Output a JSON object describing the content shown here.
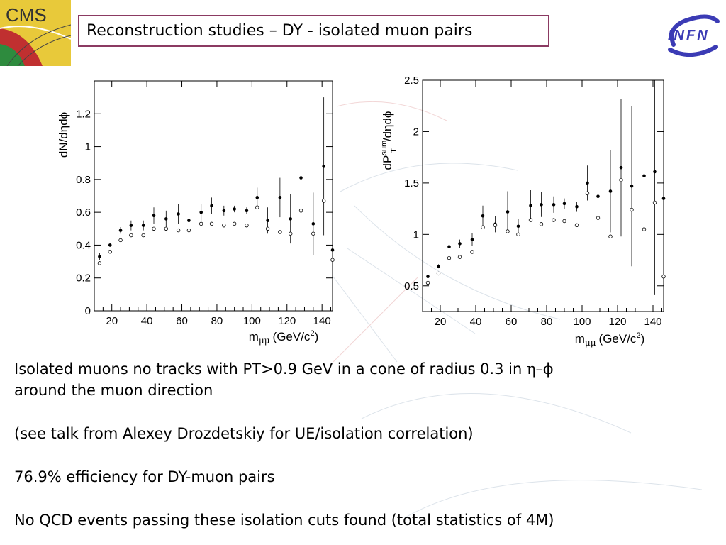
{
  "slide": {
    "title": "Reconstruction studies – DY - isolated muon pairs",
    "logo_left": "CMS",
    "logo_right": "INFN",
    "paragraphs": {
      "p1_line1": "Isolated muons no tracks with PT>0.9 GeV in a cone of radius 0.3 in ",
      "p1_symbol": "η–ϕ",
      "p1_line2": "around the muon direction",
      "p2": "(see talk from Alexey Drozdetskiy for UE/isolation correlation)",
      "p3": "76.9% efficiency for DY-muon pairs",
      "p4": "No QCD events passing these isolation cuts found (total statistics of 4M)"
    },
    "colors": {
      "title_border": "#8b3a62",
      "infn_blue": "#3b3bb5"
    }
  },
  "chart_data": [
    {
      "type": "scatter",
      "ylabel": "dN/dηdϕ",
      "xlabel_main": "m",
      "xlabel_sub": "μμ",
      "xlabel_units": "(GeV/c",
      "xlabel_exp": "2",
      "xlabel_close": ")",
      "xlim": [
        10,
        146
      ],
      "ylim": [
        0,
        1.4
      ],
      "xticks": [
        20,
        40,
        60,
        80,
        100,
        120,
        140
      ],
      "yticks": [
        0,
        0.2,
        0.4,
        0.6,
        0.8,
        1,
        1.2
      ],
      "ytick_labels": [
        "0",
        "0.2",
        "0.4",
        "0.6",
        "0.8",
        "1",
        "1.2"
      ],
      "series": [
        {
          "marker": "filled-circle",
          "points": [
            {
              "x": 13,
              "y": 0.33,
              "e": 0.02
            },
            {
              "x": 19,
              "y": 0.4,
              "e": 0.01
            },
            {
              "x": 25,
              "y": 0.49,
              "e": 0.02
            },
            {
              "x": 31,
              "y": 0.52,
              "e": 0.03
            },
            {
              "x": 38,
              "y": 0.52,
              "e": 0.03
            },
            {
              "x": 44,
              "y": 0.58,
              "e": 0.05
            },
            {
              "x": 51,
              "y": 0.56,
              "e": 0.05
            },
            {
              "x": 58,
              "y": 0.59,
              "e": 0.06
            },
            {
              "x": 64,
              "y": 0.55,
              "e": 0.05
            },
            {
              "x": 71,
              "y": 0.6,
              "e": 0.05
            },
            {
              "x": 77,
              "y": 0.64,
              "e": 0.05
            },
            {
              "x": 84,
              "y": 0.61,
              "e": 0.03
            },
            {
              "x": 90,
              "y": 0.62,
              "e": 0.02
            },
            {
              "x": 97,
              "y": 0.61,
              "e": 0.02
            },
            {
              "x": 103,
              "y": 0.69,
              "e": 0.06
            },
            {
              "x": 109,
              "y": 0.55,
              "e": 0.08
            },
            {
              "x": 116,
              "y": 0.69,
              "e": 0.12
            },
            {
              "x": 122,
              "y": 0.56,
              "e": 0.15
            },
            {
              "x": 128,
              "y": 0.81,
              "e": 0.29
            },
            {
              "x": 135,
              "y": 0.53,
              "e": 0.19
            },
            {
              "x": 141,
              "y": 0.88,
              "e": 0.42
            },
            {
              "x": 146,
              "y": 0.37,
              "e": 0.05
            }
          ]
        },
        {
          "marker": "open-circle",
          "points": [
            {
              "x": 13,
              "y": 0.29
            },
            {
              "x": 19,
              "y": 0.36
            },
            {
              "x": 25,
              "y": 0.43
            },
            {
              "x": 31,
              "y": 0.46
            },
            {
              "x": 38,
              "y": 0.46
            },
            {
              "x": 44,
              "y": 0.5
            },
            {
              "x": 51,
              "y": 0.5
            },
            {
              "x": 58,
              "y": 0.49
            },
            {
              "x": 64,
              "y": 0.49
            },
            {
              "x": 71,
              "y": 0.53
            },
            {
              "x": 77,
              "y": 0.53
            },
            {
              "x": 84,
              "y": 0.52
            },
            {
              "x": 90,
              "y": 0.53
            },
            {
              "x": 97,
              "y": 0.52
            },
            {
              "x": 103,
              "y": 0.63
            },
            {
              "x": 109,
              "y": 0.5
            },
            {
              "x": 116,
              "y": 0.48
            },
            {
              "x": 122,
              "y": 0.47
            },
            {
              "x": 128,
              "y": 0.61
            },
            {
              "x": 135,
              "y": 0.47
            },
            {
              "x": 141,
              "y": 0.67
            },
            {
              "x": 146,
              "y": 0.31
            }
          ]
        }
      ]
    },
    {
      "type": "scatter",
      "ylabel_main": "dP",
      "ylabel_sup": "sum",
      "ylabel_sub": "T",
      "ylabel_tail": "/dηdϕ",
      "xlabel_main": "m",
      "xlabel_sub": "μμ",
      "xlabel_units": "(GeV/c",
      "xlabel_exp": "2",
      "xlabel_close": ")",
      "xlim": [
        10,
        146
      ],
      "ylim": [
        0.25,
        2.5
      ],
      "xticks": [
        20,
        40,
        60,
        80,
        100,
        120,
        140
      ],
      "yticks": [
        0.5,
        1,
        1.5,
        2,
        2.5
      ],
      "ytick_labels": [
        "0.5",
        "1",
        "1.5",
        "2",
        "2.5"
      ],
      "series": [
        {
          "marker": "filled-circle",
          "points": [
            {
              "x": 13,
              "y": 0.59,
              "e": 0.02
            },
            {
              "x": 19,
              "y": 0.69,
              "e": 0.02
            },
            {
              "x": 25,
              "y": 0.88,
              "e": 0.03
            },
            {
              "x": 31,
              "y": 0.91,
              "e": 0.04
            },
            {
              "x": 38,
              "y": 0.95,
              "e": 0.06
            },
            {
              "x": 44,
              "y": 1.18,
              "e": 0.1
            },
            {
              "x": 51,
              "y": 1.1,
              "e": 0.08
            },
            {
              "x": 58,
              "y": 1.22,
              "e": 0.2
            },
            {
              "x": 64,
              "y": 1.08,
              "e": 0.07
            },
            {
              "x": 71,
              "y": 1.28,
              "e": 0.15
            },
            {
              "x": 77,
              "y": 1.29,
              "e": 0.12
            },
            {
              "x": 84,
              "y": 1.29,
              "e": 0.08
            },
            {
              "x": 90,
              "y": 1.3,
              "e": 0.05
            },
            {
              "x": 97,
              "y": 1.27,
              "e": 0.05
            },
            {
              "x": 103,
              "y": 1.5,
              "e": 0.17
            },
            {
              "x": 109,
              "y": 1.37,
              "e": 0.2
            },
            {
              "x": 116,
              "y": 1.42,
              "e": 0.4
            },
            {
              "x": 122,
              "y": 1.65,
              "e": 0.67
            },
            {
              "x": 128,
              "y": 1.47,
              "e": 0.78
            },
            {
              "x": 135,
              "y": 1.57,
              "e": 0.72
            },
            {
              "x": 141,
              "y": 1.61,
              "e": 1.2
            },
            {
              "x": 146,
              "y": 1.35,
              "e": 0.05
            }
          ]
        },
        {
          "marker": "open-circle",
          "points": [
            {
              "x": 13,
              "y": 0.53
            },
            {
              "x": 19,
              "y": 0.62
            },
            {
              "x": 25,
              "y": 0.77
            },
            {
              "x": 31,
              "y": 0.78
            },
            {
              "x": 38,
              "y": 0.83
            },
            {
              "x": 44,
              "y": 1.07
            },
            {
              "x": 51,
              "y": 1.09
            },
            {
              "x": 58,
              "y": 1.03
            },
            {
              "x": 64,
              "y": 1.0
            },
            {
              "x": 71,
              "y": 1.14
            },
            {
              "x": 77,
              "y": 1.1
            },
            {
              "x": 84,
              "y": 1.14
            },
            {
              "x": 90,
              "y": 1.13
            },
            {
              "x": 97,
              "y": 1.09
            },
            {
              "x": 103,
              "y": 1.4
            },
            {
              "x": 109,
              "y": 1.16
            },
            {
              "x": 116,
              "y": 0.98
            },
            {
              "x": 122,
              "y": 1.53
            },
            {
              "x": 128,
              "y": 1.24
            },
            {
              "x": 135,
              "y": 1.05
            },
            {
              "x": 141,
              "y": 1.31
            },
            {
              "x": 146,
              "y": 0.59
            }
          ]
        }
      ]
    }
  ]
}
